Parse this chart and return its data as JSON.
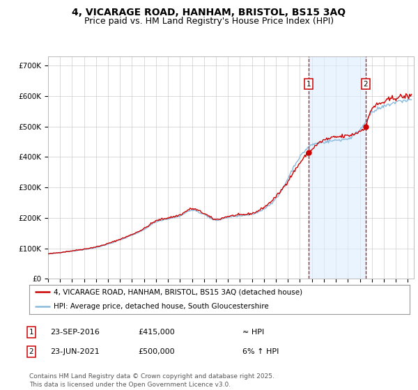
{
  "title": "4, VICARAGE ROAD, HANHAM, BRISTOL, BS15 3AQ",
  "subtitle": "Price paid vs. HM Land Registry's House Price Index (HPI)",
  "ylim": [
    0,
    730000
  ],
  "yticks": [
    0,
    100000,
    200000,
    300000,
    400000,
    500000,
    600000,
    700000
  ],
  "ytick_labels": [
    "£0",
    "£100K",
    "£200K",
    "£300K",
    "£400K",
    "£500K",
    "£600K",
    "£700K"
  ],
  "sale1_price": 415000,
  "sale1_x": 2016.73,
  "sale2_price": 500000,
  "sale2_x": 2021.47,
  "line_color_red": "#cc0000",
  "line_color_blue": "#88bbdd",
  "dashed_color": "#cc0000",
  "bg_color": "#ffffff",
  "grid_color": "#cccccc",
  "shade_color": "#ddeeff",
  "legend_label_red": "4, VICARAGE ROAD, HANHAM, BRISTOL, BS15 3AQ (detached house)",
  "legend_label_blue": "HPI: Average price, detached house, South Gloucestershire",
  "footer": "Contains HM Land Registry data © Crown copyright and database right 2025.\nThis data is licensed under the Open Government Licence v3.0.",
  "title_fontsize": 10,
  "subtitle_fontsize": 9,
  "tick_fontsize": 7.5,
  "legend_fontsize": 7.5,
  "annot_fontsize": 8,
  "footer_fontsize": 6.5
}
